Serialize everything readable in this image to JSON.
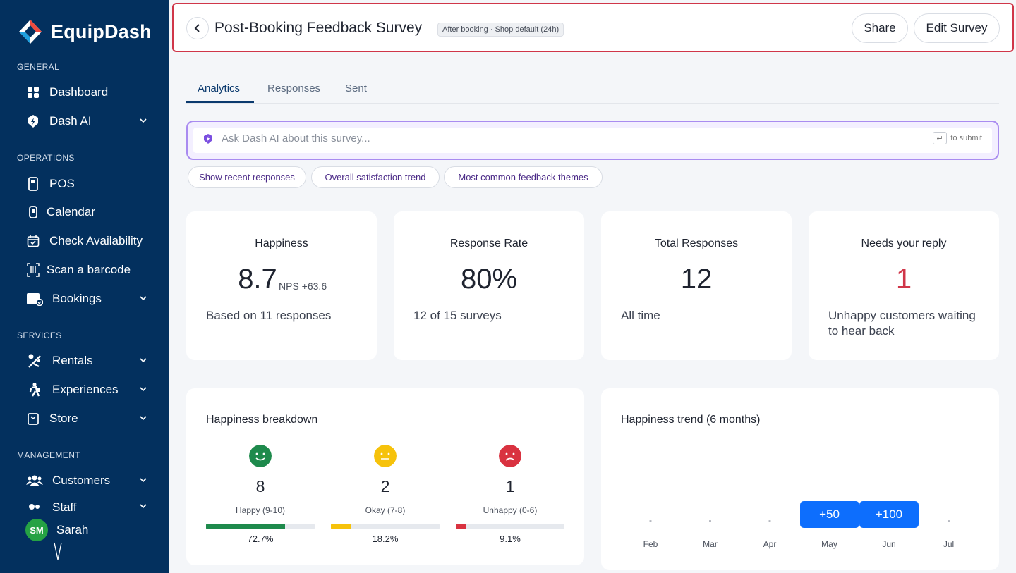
{
  "app": {
    "name": "EquipDash"
  },
  "sidebar": {
    "sections": {
      "general": "GENERAL",
      "operations": "OPERATIONS",
      "services": "SERVICES",
      "management": "MANAGEMENT"
    },
    "items": {
      "dashboard": "Dashboard",
      "dash_ai": "Dash AI",
      "pos": "POS",
      "calendar": "Calendar",
      "check_availability": "Check Availability",
      "scan_barcode": "Scan a barcode",
      "bookings": "Bookings",
      "rentals": "Rentals",
      "experiences": "Experiences",
      "store": "Store",
      "customers": "Customers",
      "staff": "Staff"
    },
    "user": {
      "initials": "SM",
      "name": "Sarah"
    }
  },
  "header": {
    "title": "Post-Booking Feedback Survey",
    "badge": "After booking · Shop default (24h)",
    "share_label": "Share",
    "edit_label": "Edit Survey"
  },
  "tabs": [
    {
      "label": "Analytics",
      "active": true
    },
    {
      "label": "Responses",
      "active": false
    },
    {
      "label": "Sent",
      "active": false
    }
  ],
  "ai": {
    "placeholder": "Ask Dash AI about this survey...",
    "key_hint": "↵",
    "submit_hint": "to submit",
    "chips": [
      "Show recent responses",
      "Overall satisfaction trend",
      "Most common feedback themes"
    ]
  },
  "stats": {
    "happiness": {
      "title": "Happiness",
      "value": "8.7",
      "nps": "NPS +63.6",
      "sub": "Based on 11 responses"
    },
    "response_rate": {
      "title": "Response Rate",
      "value": "80%",
      "sub": "12 of 15 surveys"
    },
    "total": {
      "title": "Total Responses",
      "value": "12",
      "sub": "All time"
    },
    "needs_reply": {
      "title": "Needs your reply",
      "value": "1",
      "sub": "Unhappy customers waiting to hear back"
    }
  },
  "breakdown": {
    "title": "Happiness breakdown",
    "items": [
      {
        "count": "8",
        "label": "Happy (9-10)",
        "pct": "72.7%",
        "fraction": 0.727,
        "color": "#1e8a4c"
      },
      {
        "count": "2",
        "label": "Okay (7-8)",
        "pct": "18.2%",
        "fraction": 0.182,
        "color": "#f6c20b"
      },
      {
        "count": "1",
        "label": "Unhappy (0-6)",
        "pct": "9.1%",
        "fraction": 0.091,
        "color": "#d93240"
      }
    ]
  },
  "trend": {
    "title": "Happiness trend (6 months)",
    "months": [
      {
        "month": "Feb",
        "value": "-"
      },
      {
        "month": "Mar",
        "value": "-"
      },
      {
        "month": "Apr",
        "value": "-"
      },
      {
        "month": "May",
        "value": "+50"
      },
      {
        "month": "Jun",
        "value": "+100"
      },
      {
        "month": "Jul",
        "value": "-"
      }
    ]
  },
  "colors": {
    "sidebar": "#03305e",
    "accent": "#0d6efd",
    "danger": "#d03649",
    "ai_border": "#a98bf0"
  }
}
